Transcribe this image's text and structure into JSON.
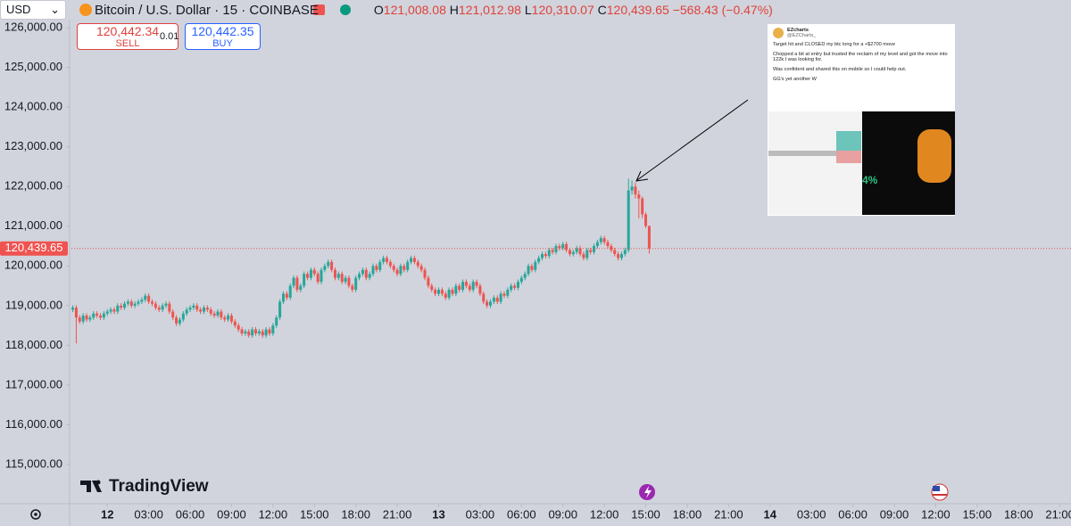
{
  "header": {
    "currency": "USD",
    "symbol": "Bitcoin / U.S. Dollar · 15 · COINBASE",
    "ohlc": [
      {
        "label": "O",
        "value": "121,008.08"
      },
      {
        "label": "H",
        "value": "121,012.98"
      },
      {
        "label": "L",
        "value": "120,310.07"
      },
      {
        "label": "C",
        "value": "120,439.65"
      }
    ],
    "change": "−568.43 (−0.47%)"
  },
  "trade": {
    "sell_price": "120,442.34",
    "sell": "SELL",
    "quantity": "0.01",
    "buy_price": "120,442.35",
    "buy": "BUY"
  },
  "logo": "TradingView",
  "tweet": {
    "author": "EZcharts",
    "handle": "@EZCharts_",
    "paragraphs": [
      "Target hit and CLOSED my btc long for a +$2700 move",
      "Chopped a bit at entry but trusted the reclaim of my level and got the move into 122k I was looking for.",
      "Was confident and shared this on mobile so I could help out.",
      "GG's yet another W"
    ],
    "image_text": "4%"
  },
  "chart_data": {
    "type": "candlestick",
    "up_color": "#26a69a",
    "down_color": "#ef5350",
    "xlim": [
      -2.6,
      69.8
    ],
    "ylim": [
      114010,
      126700
    ],
    "xticks": [
      {
        "value": 0,
        "label": "12"
      },
      {
        "value": 3,
        "label": "03:00"
      },
      {
        "value": 6,
        "label": "06:00"
      },
      {
        "value": 9,
        "label": "09:00"
      },
      {
        "value": 12,
        "label": "12:00"
      },
      {
        "value": 15,
        "label": "15:00"
      },
      {
        "value": 18,
        "label": "18:00"
      },
      {
        "value": 21,
        "label": "21:00"
      },
      {
        "value": 24,
        "label": "13"
      },
      {
        "value": 27,
        "label": "03:00"
      },
      {
        "value": 30,
        "label": "06:00"
      },
      {
        "value": 33,
        "label": "09:00"
      },
      {
        "value": 36,
        "label": "12:00"
      },
      {
        "value": 39,
        "label": "15:00"
      },
      {
        "value": 42,
        "label": "18:00"
      },
      {
        "value": 45,
        "label": "21:00"
      },
      {
        "value": 48,
        "label": "14"
      },
      {
        "value": 51,
        "label": "03:00"
      },
      {
        "value": 54,
        "label": "06:00"
      },
      {
        "value": 57,
        "label": "09:00"
      },
      {
        "value": 60,
        "label": "12:00"
      },
      {
        "value": 63,
        "label": "15:00"
      },
      {
        "value": 66,
        "label": "18:00"
      },
      {
        "value": 69,
        "label": "21:00"
      }
    ],
    "yticks": [
      {
        "value": 115000,
        "label": "115,000.00"
      },
      {
        "value": 116000,
        "label": "116,000.00"
      },
      {
        "value": 117000,
        "label": "117,000.00"
      },
      {
        "value": 118000,
        "label": "118,000.00"
      },
      {
        "value": 119000,
        "label": "119,000.00"
      },
      {
        "value": 120000,
        "label": "120,000.00"
      },
      {
        "value": 121000,
        "label": "121,000.00"
      },
      {
        "value": 122000,
        "label": "122,000.00"
      },
      {
        "value": 123000,
        "label": "123,000.00"
      },
      {
        "value": 124000,
        "label": "124,000.00"
      },
      {
        "value": 125000,
        "label": "125,000.00"
      },
      {
        "value": 126000,
        "label": "126,000.00"
      }
    ],
    "last_price": {
      "value": 120439.65,
      "label": "120,439.65"
    },
    "x": [
      -2.5,
      -2.25,
      -2,
      -1.75,
      -1.5,
      -1.25,
      -1,
      -0.75,
      -0.5,
      -0.25,
      0,
      0.25,
      0.5,
      0.75,
      1,
      1.25,
      1.5,
      1.75,
      2,
      2.25,
      2.5,
      2.75,
      3,
      3.25,
      3.5,
      3.75,
      4,
      4.25,
      4.5,
      4.75,
      5,
      5.25,
      5.5,
      5.75,
      6,
      6.25,
      6.5,
      6.75,
      7,
      7.25,
      7.5,
      7.75,
      8,
      8.25,
      8.5,
      8.75,
      9,
      9.25,
      9.5,
      9.75,
      10,
      10.25,
      10.5,
      10.75,
      11,
      11.25,
      11.5,
      11.75,
      12,
      12.25,
      12.5,
      12.75,
      13,
      13.25,
      13.5,
      13.75,
      14,
      14.25,
      14.5,
      14.75,
      15,
      15.25,
      15.5,
      15.75,
      16,
      16.25,
      16.5,
      16.75,
      17,
      17.25,
      17.5,
      17.75,
      18,
      18.25,
      18.5,
      18.75,
      19,
      19.25,
      19.5,
      19.75,
      20,
      20.25,
      20.5,
      20.75,
      21,
      21.25,
      21.5,
      21.75,
      22,
      22.25,
      22.5,
      22.75,
      23,
      23.25,
      23.5,
      23.75,
      24,
      24.25,
      24.5,
      24.75,
      25,
      25.25,
      25.5,
      25.75,
      26,
      26.25,
      26.5,
      26.75,
      27,
      27.25,
      27.5,
      27.75,
      28,
      28.25,
      28.5,
      28.75,
      29,
      29.25,
      29.5,
      29.75,
      30,
      30.25,
      30.5,
      30.75,
      31,
      31.25,
      31.5,
      31.75,
      32,
      32.25,
      32.5,
      32.75,
      33,
      33.25,
      33.5,
      33.75,
      34,
      34.25,
      34.5,
      34.75,
      35,
      35.25,
      35.5,
      35.75,
      36,
      36.25,
      36.5,
      36.75,
      37,
      37.25,
      37.5,
      37.75,
      38,
      38.25,
      38.5,
      38.75,
      39,
      39.25
    ],
    "open": [
      118900,
      118950,
      118700,
      118600,
      118750,
      118650,
      118700,
      118800,
      118750,
      118700,
      118800,
      118850,
      118900,
      118850,
      119000,
      118950,
      119050,
      119100,
      119000,
      119050,
      119100,
      119150,
      119250,
      119100,
      119050,
      118950,
      118900,
      119000,
      119050,
      118850,
      118700,
      118550,
      118650,
      118800,
      118900,
      118950,
      119000,
      118900,
      118850,
      118950,
      118900,
      118800,
      118750,
      118850,
      118700,
      118650,
      118750,
      118600,
      118500,
      118400,
      118300,
      118350,
      118250,
      118400,
      118300,
      118350,
      118250,
      118400,
      118300,
      118500,
      118700,
      119100,
      119300,
      119200,
      119500,
      119700,
      119400,
      119500,
      119800,
      119700,
      119900,
      119800,
      119600,
      119900,
      120000,
      120100,
      119900,
      119700,
      119800,
      119600,
      119700,
      119500,
      119400,
      119700,
      119800,
      119900,
      119700,
      119800,
      120000,
      119900,
      120100,
      120200,
      120100,
      120000,
      119900,
      119800,
      120000,
      119900,
      120100,
      120200,
      120100,
      120000,
      119900,
      119700,
      119500,
      119400,
      119300,
      119400,
      119300,
      119200,
      119400,
      119300,
      119500,
      119400,
      119600,
      119500,
      119400,
      119600,
      119500,
      119300,
      119100,
      119000,
      119100,
      119200,
      119100,
      119300,
      119250,
      119400,
      119500,
      119450,
      119600,
      119700,
      119800,
      120000,
      119900,
      120100,
      120200,
      120300,
      120250,
      120400,
      120350,
      120500,
      120450,
      120550,
      120400,
      120300,
      120350,
      120450,
      120300,
      120200,
      120400,
      120350,
      120500,
      120600,
      120700,
      120600,
      120500,
      120400,
      120300,
      120200,
      120300,
      120400,
      121900,
      122000,
      121800,
      121700,
      121300,
      121008.08
    ],
    "high": [
      119010,
      119010,
      118760,
      118810,
      118810,
      118760,
      118860,
      118860,
      118810,
      118860,
      118910,
      118960,
      118960,
      119060,
      119060,
      119110,
      119160,
      119160,
      119110,
      119160,
      119210,
      119310,
      119310,
      119160,
      119110,
      119010,
      119060,
      119110,
      119110,
      118910,
      118760,
      118710,
      118860,
      118960,
      119010,
      119060,
      119060,
      118960,
      119010,
      119010,
      118960,
      118860,
      118910,
      118910,
      118760,
      118810,
      118810,
      118660,
      118560,
      118460,
      118410,
      118410,
      118460,
      118460,
      118410,
      118410,
      118460,
      118460,
      118560,
      118760,
      119160,
      119360,
      119360,
      119560,
      119760,
      119760,
      119560,
      119860,
      119860,
      119960,
      119960,
      119860,
      119960,
      120060,
      120160,
      120160,
      119960,
      119860,
      119860,
      119760,
      119760,
      119560,
      119760,
      119860,
      119960,
      119960,
      119860,
      120060,
      120060,
      120160,
      120260,
      120260,
      120160,
      120060,
      119960,
      120060,
      120060,
      120160,
      120260,
      120260,
      120160,
      120060,
      119960,
      119760,
      119560,
      119460,
      119460,
      119460,
      119360,
      119460,
      119460,
      119560,
      119560,
      119660,
      119660,
      119560,
      119660,
      119660,
      119560,
      119360,
      119160,
      119160,
      119260,
      119260,
      119360,
      119360,
      119460,
      119560,
      119560,
      119660,
      119760,
      119860,
      120060,
      120060,
      120160,
      120260,
      120360,
      120360,
      120460,
      120460,
      120560,
      120560,
      120610,
      120610,
      120460,
      120410,
      120510,
      120510,
      120360,
      120460,
      120460,
      120560,
      120660,
      120760,
      120760,
      120660,
      120560,
      120460,
      120360,
      120360,
      120460,
      122200,
      122150,
      122100,
      121900,
      121750,
      121350,
      121012.98
    ],
    "low": [
      118840,
      118050,
      118540,
      118540,
      118590,
      118590,
      118640,
      118690,
      118640,
      118640,
      118740,
      118790,
      118790,
      118790,
      118890,
      118890,
      118990,
      118940,
      118940,
      118990,
      119040,
      119090,
      119040,
      118990,
      118890,
      118840,
      118840,
      118940,
      118790,
      118640,
      118490,
      118490,
      118590,
      118740,
      118840,
      118890,
      118840,
      118790,
      118790,
      118840,
      118740,
      118690,
      118690,
      118640,
      118590,
      118590,
      118540,
      118440,
      118340,
      118240,
      118240,
      118190,
      118190,
      118240,
      118240,
      118190,
      118190,
      118240,
      118240,
      118440,
      118640,
      119040,
      119140,
      119140,
      119440,
      119340,
      119340,
      119440,
      119640,
      119640,
      119740,
      119540,
      119540,
      119840,
      119940,
      119840,
      119640,
      119640,
      119540,
      119540,
      119440,
      119340,
      119340,
      119640,
      119740,
      119640,
      119640,
      119740,
      119840,
      119840,
      120040,
      120040,
      119940,
      119840,
      119740,
      119740,
      119840,
      119840,
      120040,
      120040,
      119940,
      119840,
      119640,
      119440,
      119340,
      119240,
      119240,
      119240,
      119140,
      119140,
      119240,
      119240,
      119340,
      119340,
      119440,
      119340,
      119340,
      119440,
      119240,
      119040,
      118940,
      118940,
      119040,
      119040,
      119040,
      119190,
      119190,
      119340,
      119390,
      119390,
      119540,
      119640,
      119740,
      119840,
      119840,
      120040,
      120140,
      120190,
      120190,
      120290,
      120290,
      120390,
      120390,
      120340,
      120240,
      120240,
      120290,
      120240,
      120140,
      120140,
      120290,
      120290,
      120440,
      120540,
      120540,
      120440,
      120340,
      120240,
      120140,
      120140,
      120240,
      120340,
      121800,
      121700,
      121200,
      121200,
      120950,
      120310.07
    ],
    "close": [
      118950,
      118700,
      118600,
      118750,
      118650,
      118700,
      118800,
      118750,
      118700,
      118800,
      118850,
      118900,
      118850,
      119000,
      118950,
      119050,
      119100,
      119000,
      119050,
      119100,
      119150,
      119250,
      119100,
      119050,
      118950,
      118900,
      119000,
      119050,
      118850,
      118700,
      118550,
      118650,
      118800,
      118900,
      118950,
      119000,
      118900,
      118850,
      118950,
      118900,
      118800,
      118750,
      118850,
      118700,
      118650,
      118750,
      118600,
      118500,
      118400,
      118300,
      118350,
      118250,
      118400,
      118300,
      118350,
      118250,
      118400,
      118300,
      118500,
      118700,
      119100,
      119300,
      119200,
      119500,
      119700,
      119400,
      119500,
      119800,
      119700,
      119900,
      119800,
      119600,
      119900,
      120000,
      120100,
      119900,
      119700,
      119800,
      119600,
      119700,
      119500,
      119400,
      119700,
      119800,
      119900,
      119700,
      119800,
      120000,
      119900,
      120100,
      120200,
      120100,
      120000,
      119900,
      119800,
      120000,
      119900,
      120100,
      120200,
      120100,
      120000,
      119900,
      119700,
      119500,
      119400,
      119300,
      119400,
      119300,
      119200,
      119400,
      119300,
      119500,
      119400,
      119600,
      119500,
      119400,
      119600,
      119500,
      119300,
      119100,
      119000,
      119100,
      119200,
      119100,
      119300,
      119250,
      119400,
      119500,
      119450,
      119600,
      119700,
      119800,
      120000,
      119900,
      120100,
      120200,
      120300,
      120250,
      120400,
      120350,
      120500,
      120450,
      120550,
      120400,
      120300,
      120350,
      120450,
      120300,
      120200,
      120400,
      120350,
      120500,
      120600,
      120700,
      120600,
      120500,
      120400,
      120300,
      120200,
      120300,
      120400,
      121900,
      122000,
      121800,
      121700,
      121300,
      121008.08,
      120439.65
    ]
  }
}
